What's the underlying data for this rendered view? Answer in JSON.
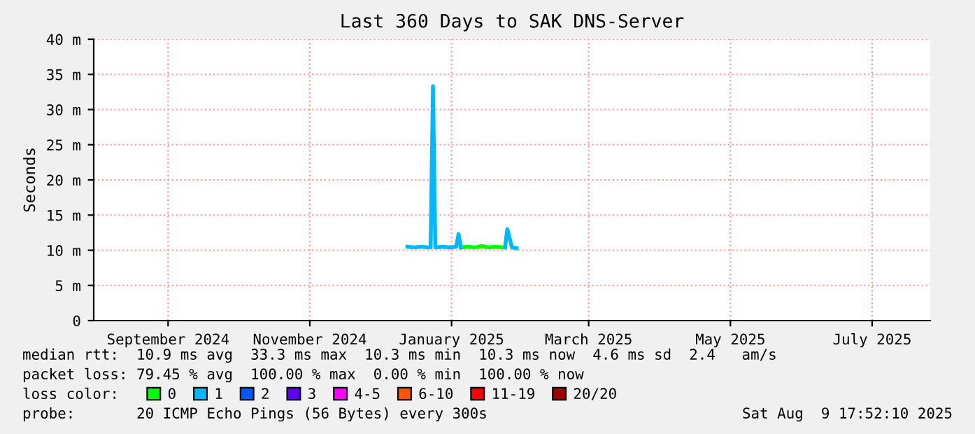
{
  "chart_data": {
    "type": "line",
    "title": "Last 360 Days to SAK DNS-Server",
    "ylabel": "Seconds",
    "xlim": [
      "2024-08-14",
      "2025-08-09"
    ],
    "xticks": [
      {
        "value": "2024-09-15",
        "label": "September 2024"
      },
      {
        "value": "2024-11-15",
        "label": "November 2024"
      },
      {
        "value": "2025-01-15",
        "label": "January 2025"
      },
      {
        "value": "2025-03-15",
        "label": "March 2025"
      },
      {
        "value": "2025-05-15",
        "label": "May 2025"
      },
      {
        "value": "2025-07-15",
        "label": "July 2025"
      }
    ],
    "ylim": [
      0,
      40
    ],
    "yticks": [
      0,
      {
        "value": 5,
        "label": "5 m"
      },
      {
        "value": 10,
        "label": "10 m"
      },
      {
        "value": 15,
        "label": "15 m"
      },
      {
        "value": 20,
        "label": "20 m"
      },
      {
        "value": 25,
        "label": "25 m"
      },
      {
        "value": 30,
        "label": "30 m"
      },
      {
        "value": 35,
        "label": "35 m"
      },
      {
        "value": 40,
        "label": "40 m"
      }
    ],
    "grid": true,
    "legend": "bottom",
    "legend_title": "loss color:",
    "marker": "none",
    "line_style": "solid",
    "x": [
      "2024-12-27",
      "2024-12-30",
      "2025-01-02",
      "2025-01-05",
      "2025-01-06",
      "2025-01-07",
      "2025-01-08",
      "2025-01-11",
      "2025-01-14",
      "2025-01-17",
      "2025-01-18",
      "2025-01-19",
      "2025-01-22",
      "2025-01-25",
      "2025-01-28",
      "2025-01-31",
      "2025-02-03",
      "2025-02-06",
      "2025-02-07",
      "2025-02-08",
      "2025-02-10",
      "2025-02-12"
    ],
    "series": [
      {
        "name": "0",
        "color": "#00ff00",
        "values": [
          null,
          null,
          null,
          null,
          null,
          null,
          null,
          null,
          null,
          null,
          null,
          10.4,
          10.5,
          10.4,
          10.6,
          10.4,
          10.5,
          10.4,
          10.4,
          null,
          null,
          null
        ]
      },
      {
        "name": "1",
        "color": "#00b8ff",
        "values": [
          10.5,
          10.4,
          10.5,
          10.4,
          10.4,
          33.3,
          10.4,
          10.5,
          10.4,
          10.5,
          12.3,
          10.4,
          null,
          null,
          null,
          null,
          null,
          null,
          10.4,
          13.0,
          10.4,
          10.3
        ]
      },
      {
        "name": "2",
        "color": "#0059ff",
        "values": [
          null,
          null,
          null,
          null,
          null,
          null,
          null,
          null,
          null,
          null,
          null,
          null,
          null,
          null,
          null,
          null,
          null,
          null,
          null,
          null,
          null,
          null
        ]
      },
      {
        "name": "3",
        "color": "#5e00ff",
        "values": [
          null,
          null,
          null,
          null,
          null,
          null,
          null,
          null,
          null,
          null,
          null,
          null,
          null,
          null,
          null,
          null,
          null,
          null,
          null,
          null,
          null,
          null
        ]
      },
      {
        "name": "4-5",
        "color": "#ff00ff",
        "values": [
          null,
          null,
          null,
          null,
          null,
          null,
          null,
          null,
          null,
          null,
          null,
          null,
          null,
          null,
          null,
          null,
          null,
          null,
          null,
          null,
          null,
          null
        ]
      },
      {
        "name": "6-10",
        "color": "#ff5500",
        "values": [
          null,
          null,
          null,
          null,
          null,
          null,
          null,
          null,
          null,
          null,
          null,
          null,
          null,
          null,
          null,
          null,
          null,
          null,
          null,
          null,
          null,
          null
        ]
      },
      {
        "name": "11-19",
        "color": "#ff0000",
        "values": [
          null,
          null,
          null,
          null,
          null,
          null,
          null,
          null,
          null,
          null,
          null,
          null,
          null,
          null,
          null,
          null,
          null,
          null,
          null,
          null,
          null,
          null
        ]
      },
      {
        "name": "20/20",
        "color": "#a10000",
        "values": [
          null,
          null,
          null,
          null,
          null,
          null,
          null,
          null,
          null,
          null,
          null,
          null,
          null,
          null,
          null,
          null,
          null,
          null,
          null,
          null,
          null,
          null
        ]
      }
    ],
    "annotations": [
      "median rtt:  10.9 ms avg  33.3 ms max  10.3 ms min  10.3 ms now  4.6 ms sd  2.4   am/s",
      "packet loss: 79.45 % avg  100.00 % max  0.00 % min  100.00 % now",
      "probe:       20 ICMP Echo Pings (56 Bytes) every 300s",
      "Sat Aug  9 17:52:10 2025"
    ]
  }
}
